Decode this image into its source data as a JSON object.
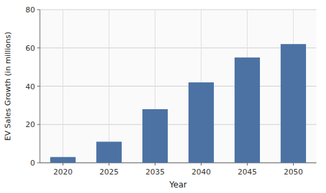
{
  "chart_data": {
    "type": "bar",
    "categories": [
      "2020",
      "2025",
      "2035",
      "2040",
      "2045",
      "2050"
    ],
    "values": [
      3,
      11,
      28,
      42,
      55,
      62
    ],
    "color": "#4C72A4",
    "xlabel": "Year",
    "ylabel": "EV Sales Growth (in millions)",
    "ylim": [
      0,
      80
    ],
    "yticks": [
      0,
      20,
      40,
      60,
      80
    ],
    "grid": true
  }
}
